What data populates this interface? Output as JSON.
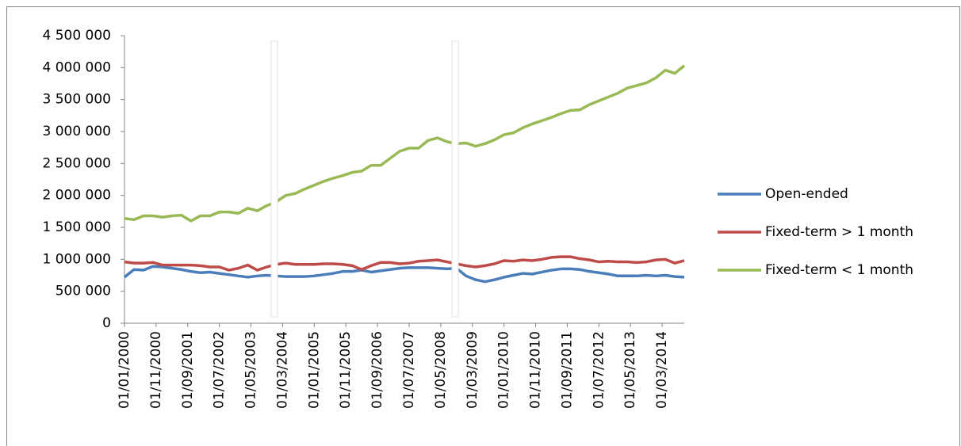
{
  "chart_data": {
    "type": "line",
    "x": [
      "01/01/2000",
      "01/04/2000",
      "01/07/2000",
      "01/10/2000",
      "01/01/2001",
      "01/04/2001",
      "01/07/2001",
      "01/10/2001",
      "01/01/2002",
      "01/04/2002",
      "01/07/2002",
      "01/10/2002",
      "01/01/2003",
      "01/04/2003",
      "01/07/2003",
      "01/10/2003",
      "01/01/2004",
      "01/04/2004",
      "01/07/2004",
      "01/10/2004",
      "01/01/2005",
      "01/04/2005",
      "01/07/2005",
      "01/10/2005",
      "01/01/2006",
      "01/04/2006",
      "01/07/2006",
      "01/10/2006",
      "01/01/2007",
      "01/04/2007",
      "01/07/2007",
      "01/10/2007",
      "01/01/2008",
      "01/04/2008",
      "01/07/2008",
      "01/10/2008",
      "01/01/2009",
      "01/04/2009",
      "01/07/2009",
      "01/10/2009",
      "01/01/2010",
      "01/04/2010",
      "01/07/2010",
      "01/10/2010",
      "01/01/2011",
      "01/04/2011",
      "01/07/2011",
      "01/10/2011",
      "01/01/2012",
      "01/04/2012",
      "01/07/2012",
      "01/10/2012",
      "01/01/2013",
      "01/04/2013",
      "01/07/2013",
      "01/10/2013",
      "01/01/2014",
      "01/04/2014",
      "01/07/2014",
      "01/10/2014"
    ],
    "series": [
      {
        "name": "Open-ended",
        "color": "#4a7ebb",
        "values": [
          720000,
          840000,
          830000,
          890000,
          880000,
          860000,
          840000,
          810000,
          790000,
          800000,
          780000,
          760000,
          740000,
          720000,
          740000,
          750000,
          740000,
          730000,
          730000,
          730000,
          740000,
          760000,
          780000,
          810000,
          810000,
          830000,
          800000,
          820000,
          840000,
          860000,
          870000,
          870000,
          870000,
          860000,
          850000,
          860000,
          740000,
          680000,
          650000,
          680000,
          720000,
          750000,
          780000,
          770000,
          800000,
          830000,
          850000,
          850000,
          840000,
          810000,
          790000,
          770000,
          740000,
          740000,
          740000,
          750000,
          740000,
          750000,
          730000,
          720000
        ]
      },
      {
        "name": "Fixed-term > 1 month",
        "color": "#be4b48",
        "values": [
          960000,
          940000,
          940000,
          950000,
          910000,
          910000,
          910000,
          910000,
          900000,
          880000,
          880000,
          830000,
          860000,
          910000,
          830000,
          880000,
          920000,
          940000,
          920000,
          920000,
          920000,
          930000,
          930000,
          920000,
          900000,
          840000,
          900000,
          950000,
          950000,
          930000,
          940000,
          970000,
          980000,
          990000,
          960000,
          930000,
          900000,
          880000,
          900000,
          930000,
          980000,
          970000,
          990000,
          980000,
          1000000,
          1030000,
          1040000,
          1040000,
          1010000,
          990000,
          960000,
          970000,
          960000,
          960000,
          950000,
          960000,
          990000,
          1000000,
          940000,
          980000
        ]
      },
      {
        "name": "Fixed-term < 1 month",
        "color": "#98b954",
        "values": [
          1640000,
          1620000,
          1680000,
          1680000,
          1660000,
          1680000,
          1690000,
          1600000,
          1680000,
          1680000,
          1740000,
          1740000,
          1720000,
          1800000,
          1760000,
          1840000,
          1900000,
          2000000,
          2030000,
          2100000,
          2160000,
          2220000,
          2270000,
          2310000,
          2360000,
          2380000,
          2470000,
          2470000,
          2580000,
          2690000,
          2740000,
          2740000,
          2860000,
          2900000,
          2840000,
          2810000,
          2820000,
          2770000,
          2810000,
          2870000,
          2950000,
          2980000,
          3060000,
          3120000,
          3170000,
          3220000,
          3280000,
          3330000,
          3340000,
          3420000,
          3480000,
          3540000,
          3600000,
          3680000,
          3720000,
          3760000,
          3840000,
          3960000,
          3910000,
          4030000
        ]
      }
    ],
    "xlim": [
      "01/01/2000",
      "01/10/2014"
    ],
    "xticks": [
      "01/01/2000",
      "01/11/2000",
      "01/09/2001",
      "01/07/2002",
      "01/05/2003",
      "01/03/2004",
      "01/01/2005",
      "01/11/2005",
      "01/09/2006",
      "01/07/2007",
      "01/05/2008",
      "01/03/2009",
      "01/01/2010",
      "01/11/2010",
      "01/09/2011",
      "01/07/2012",
      "01/05/2013",
      "01/03/2014"
    ],
    "ylim": [
      0,
      4500000
    ],
    "yticks": [
      0,
      {
        "value": 500000,
        "label": "500 000"
      },
      {
        "value": 1000000,
        "label": "1 000 000"
      },
      {
        "value": 1500000,
        "label": "1 500 000"
      },
      {
        "value": 2000000,
        "label": "2 000 000"
      },
      {
        "value": 2500000,
        "label": "2 500 000"
      },
      {
        "value": 3000000,
        "label": "3 000 000"
      },
      {
        "value": 3500000,
        "label": "3 500 000"
      },
      {
        "value": 4000000,
        "label": "4 000 000"
      },
      {
        "value": 4500000,
        "label": "4 500 000"
      }
    ],
    "grid": false,
    "legend": "right"
  }
}
